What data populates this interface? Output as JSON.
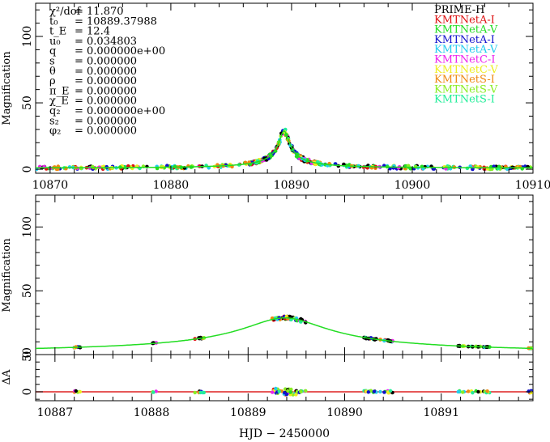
{
  "chart_data": {
    "type": "scatter",
    "title": "",
    "xlabel": "HJD − 2450000",
    "panels": [
      {
        "id": "top",
        "ylabel": "Magnification",
        "xlim": [
          10868.8,
          10910.0
        ],
        "ylim": [
          -3,
          125
        ],
        "xticks": [
          10870,
          10880,
          10890,
          10900,
          10910
        ],
        "yticks": [
          0,
          50,
          100
        ]
      },
      {
        "id": "middle",
        "ylabel": "Magnification",
        "xlim": [
          10886.8,
          10891.95
        ],
        "ylim": [
          0,
          125
        ],
        "xticks": [
          10887,
          10888,
          10889,
          10890,
          10891
        ],
        "yticks": [
          0,
          50,
          100
        ]
      },
      {
        "id": "residual",
        "ylabel": "ΔA",
        "xlim": [
          10886.8,
          10891.95
        ],
        "ylim": [
          -12,
          50
        ],
        "xticks": [
          10887,
          10888,
          10889,
          10890,
          10891
        ],
        "yticks": [
          0,
          50
        ],
        "ytick_labels": [
          "0",
          "50"
        ]
      }
    ],
    "model": {
      "t0": 10889.37988,
      "tE": 12.4,
      "u0": 0.034803,
      "color": "#22dd22",
      "residual_color": "#dd2222"
    },
    "params": [
      {
        "label": "χ²/dof",
        "value": "= 11.870"
      },
      {
        "label": "t₀",
        "value": "= 10889.37988"
      },
      {
        "label": "t_E",
        "value": "= 12.4"
      },
      {
        "label": "u₀",
        "value": "= 0.034803"
      },
      {
        "label": "q",
        "value": "= 0.000000e+00"
      },
      {
        "label": "s",
        "value": "= 0.000000"
      },
      {
        "label": "θ",
        "value": "= 0.000000"
      },
      {
        "label": "ρ",
        "value": "= 0.000000"
      },
      {
        "label": "π_E",
        "value": "= 0.000000"
      },
      {
        "label": "χ_E",
        "value": "= 0.000000"
      },
      {
        "label": "q₂",
        "value": "= 0.000000e+00"
      },
      {
        "label": "s₂",
        "value": "= 0.000000"
      },
      {
        "label": "φ₂",
        "value": "= 0.000000"
      }
    ],
    "series": [
      {
        "name": "PRIME-H",
        "color": "#000000"
      },
      {
        "name": "KMTNetA-I",
        "color": "#dd1111"
      },
      {
        "name": "KMTNetA-V",
        "color": "#22dd22"
      },
      {
        "name": "KMTNetA-I",
        "color": "#1111cc"
      },
      {
        "name": "KMTNetA-V",
        "color": "#22ccee"
      },
      {
        "name": "KMTNetC-I",
        "color": "#ee22ee"
      },
      {
        "name": "KMTNetC-V",
        "color": "#eeee22"
      },
      {
        "name": "KMTNetS-I",
        "color": "#ee8811"
      },
      {
        "name": "KMTNetS-V",
        "color": "#88ee22"
      },
      {
        "name": "KMTNetS-I",
        "color": "#22ee99"
      }
    ]
  }
}
